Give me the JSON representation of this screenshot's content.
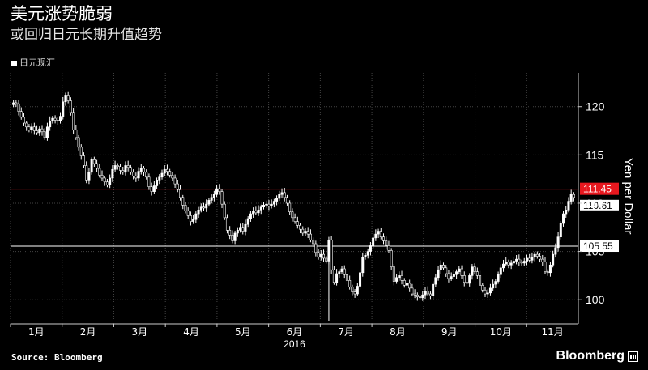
{
  "header": {
    "title": "美元涨势脆弱",
    "subtitle": "或回归日元长期升值趋势",
    "legend_label": "日元现汇"
  },
  "footer": {
    "source": "Source: Bloomberg",
    "brand": "Bloomberg"
  },
  "colors": {
    "background": "#000000",
    "grid": "#444444",
    "candle": "#ffffff",
    "resistance": "#e8181f",
    "support": "#ffffff"
  },
  "chart_data": {
    "type": "candlestick",
    "title": "美元涨势脆弱",
    "subtitle": "或回归日元长期升值趋势",
    "series_name": "日元现汇",
    "ylabel": "Yen per Dollar",
    "year_label": "2016",
    "ylim": [
      97.5,
      123.5
    ],
    "yticks": [
      100,
      105,
      110,
      115,
      120
    ],
    "ytick_labels": [
      "100",
      "105",
      "110",
      "115",
      "120"
    ],
    "month_labels": [
      "1月",
      "2月",
      "3月",
      "4月",
      "5月",
      "6月",
      "7月",
      "8月",
      "9月",
      "10月",
      "11月"
    ],
    "reference_lines": [
      {
        "value": 111.45,
        "label": "111.45",
        "color": "#e8181f"
      },
      {
        "value": 105.55,
        "label": "105.55",
        "color": "#ffffff"
      }
    ],
    "last_value_label": "110.61",
    "closes": [
      120.4,
      120.3,
      119.5,
      118.9,
      118.3,
      117.9,
      117.6,
      117.9,
      117.5,
      117.3,
      117.7,
      117.4,
      116.8,
      117.9,
      118.5,
      118.8,
      118.6,
      118.5,
      119.0,
      120.5,
      121.2,
      120.6,
      119.4,
      117.6,
      116.8,
      115.8,
      114.9,
      113.9,
      112.4,
      113.2,
      114.5,
      114.1,
      113.6,
      112.9,
      112.6,
      112.2,
      111.9,
      112.6,
      113.5,
      113.9,
      113.8,
      113.4,
      113.2,
      113.9,
      113.7,
      113.2,
      112.8,
      112.6,
      113.3,
      113.6,
      113.2,
      112.7,
      111.7,
      111.2,
      111.8,
      112.4,
      112.7,
      113.1,
      113.5,
      113.3,
      112.9,
      112.6,
      112.0,
      111.4,
      110.6,
      109.8,
      109.2,
      108.7,
      108.1,
      108.3,
      108.9,
      109.3,
      109.6,
      109.5,
      109.9,
      110.3,
      110.6,
      110.9,
      111.5,
      111.2,
      109.9,
      108.5,
      107.2,
      106.7,
      106.1,
      106.9,
      107.2,
      107.5,
      107.1,
      107.8,
      108.4,
      108.9,
      109.2,
      109.0,
      109.3,
      109.6,
      109.8,
      109.9,
      109.7,
      109.9,
      110.2,
      110.5,
      110.9,
      111.1,
      110.6,
      110.0,
      109.1,
      108.5,
      108.1,
      107.7,
      107.3,
      106.9,
      107.1,
      106.8,
      106.2,
      105.8,
      104.9,
      104.4,
      104.7,
      104.3,
      104.0,
      106.2,
      103.1,
      101.8,
      102.7,
      102.9,
      103.2,
      102.6,
      102.0,
      101.3,
      100.8,
      100.6,
      101.4,
      102.8,
      104.4,
      104.6,
      105.0,
      105.6,
      106.4,
      106.8,
      107.1,
      106.5,
      106.1,
      105.6,
      105.1,
      103.4,
      101.9,
      102.3,
      102.5,
      102.0,
      101.5,
      101.7,
      101.2,
      100.6,
      100.5,
      100.3,
      100.2,
      100.5,
      100.9,
      100.6,
      100.4,
      101.6,
      102.3,
      103.1,
      103.6,
      103.3,
      102.7,
      102.2,
      102.4,
      102.6,
      102.9,
      103.2,
      102.5,
      101.8,
      101.7,
      102.5,
      103.4,
      102.9,
      102.5,
      101.5,
      101.0,
      100.6,
      100.7,
      101.2,
      101.6,
      101.9,
      102.6,
      103.3,
      103.7,
      103.9,
      103.6,
      103.8,
      104.0,
      104.2,
      103.9,
      103.8,
      104.0,
      104.3,
      104.1,
      104.4,
      104.7,
      104.5,
      104.2,
      103.9,
      102.9,
      102.8,
      103.6,
      104.7,
      105.4,
      106.5,
      107.9,
      108.9,
      109.3,
      110.2,
      110.9,
      110.6
    ],
    "grid": true,
    "legend": "top-left"
  }
}
